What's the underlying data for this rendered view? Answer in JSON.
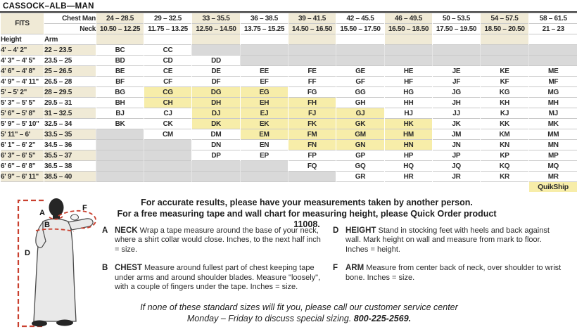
{
  "title": "CASSOCK–ALB—MAN",
  "size_chart": {
    "fits_label": "FITS",
    "chest_label": "Chest Man",
    "neck_label": "Neck",
    "height_label": "Height",
    "arm_label": "Arm",
    "quikship_label": "QuikShip",
    "columns": [
      {
        "chest": "24 – 28.5",
        "neck": "10.50 – 12.25"
      },
      {
        "chest": "29 – 32.5",
        "neck": "11.75 – 13.25"
      },
      {
        "chest": "33 – 35.5",
        "neck": "12.50 – 14.50"
      },
      {
        "chest": "36 – 38.5",
        "neck": "13.75 – 15.25"
      },
      {
        "chest": "39 – 41.5",
        "neck": "14.50 – 16.50"
      },
      {
        "chest": "42 – 45.5",
        "neck": "15.50 – 17.50"
      },
      {
        "chest": "46 – 49.5",
        "neck": "16.50 – 18.50"
      },
      {
        "chest": "50 – 53.5",
        "neck": "17.50 – 19.50"
      },
      {
        "chest": "54 – 57.5",
        "neck": "18.50 – 20.50"
      },
      {
        "chest": "58 – 61.5",
        "neck": "21 – 23"
      }
    ],
    "rows": [
      {
        "height": "4' – 4' 2\"",
        "arm": "22 – 23.5",
        "codes": [
          "BC",
          "CC",
          null,
          null,
          null,
          null,
          null,
          null,
          null,
          null
        ]
      },
      {
        "height": "4' 3\" – 4' 5\"",
        "arm": "23.5 – 25",
        "codes": [
          "BD",
          "CD",
          "DD",
          null,
          null,
          null,
          null,
          null,
          null,
          null
        ]
      },
      {
        "height": "4' 6\" – 4' 8\"",
        "arm": "25 – 26.5",
        "codes": [
          "BE",
          "CE",
          "DE",
          "EE",
          "FE",
          "GE",
          "HE",
          "JE",
          "KE",
          "ME"
        ]
      },
      {
        "height": "4' 9\" – 4' 11\"",
        "arm": "26.5 – 28",
        "codes": [
          "BF",
          "CF",
          "DF",
          "EF",
          "FF",
          "GF",
          "HF",
          "JF",
          "KF",
          "MF"
        ]
      },
      {
        "height": "5' – 5' 2\"",
        "arm": "28 – 29.5",
        "codes": [
          "BG",
          "CG",
          "DG",
          "EG",
          "FG",
          "GG",
          "HG",
          "JG",
          "KG",
          "MG"
        ]
      },
      {
        "height": "5' 3\" – 5' 5\"",
        "arm": "29.5 – 31",
        "codes": [
          "BH",
          "CH",
          "DH",
          "EH",
          "FH",
          "GH",
          "HH",
          "JH",
          "KH",
          "MH"
        ]
      },
      {
        "height": "5' 6\" – 5' 8\"",
        "arm": "31 – 32.5",
        "codes": [
          "BJ",
          "CJ",
          "DJ",
          "EJ",
          "FJ",
          "GJ",
          "HJ",
          "JJ",
          "KJ",
          "MJ"
        ]
      },
      {
        "height": "5' 9\" – 5' 10\"",
        "arm": "32.5 – 34",
        "codes": [
          "BK",
          "CK",
          "DK",
          "EK",
          "FK",
          "GK",
          "HK",
          "JK",
          "KK",
          "MK"
        ]
      },
      {
        "height": "5' 11\" – 6'",
        "arm": "33.5 – 35",
        "codes": [
          null,
          "CM",
          "DM",
          "EM",
          "FM",
          "GM",
          "HM",
          "JM",
          "KM",
          "MM"
        ]
      },
      {
        "height": "6' 1\" – 6' 2\"",
        "arm": "34.5 – 36",
        "codes": [
          null,
          null,
          "DN",
          "EN",
          "FN",
          "GN",
          "HN",
          "JN",
          "KN",
          "MN"
        ]
      },
      {
        "height": "6' 3\" – 6' 5\"",
        "arm": "35.5 – 37",
        "codes": [
          null,
          null,
          "DP",
          "EP",
          "FP",
          "GP",
          "HP",
          "JP",
          "KP",
          "MP"
        ]
      },
      {
        "height": "6' 6\" – 6' 8\"",
        "arm": "36.5 – 38",
        "codes": [
          null,
          null,
          null,
          null,
          "FQ",
          "GQ",
          "HQ",
          "JQ",
          "KQ",
          "MQ"
        ]
      },
      {
        "height": "6' 9\" – 6' 11\"",
        "arm": "38.5 – 40",
        "codes": [
          null,
          null,
          null,
          null,
          null,
          "GR",
          "HR",
          "JR",
          "KR",
          "MR"
        ]
      }
    ],
    "quikship_codes": [
      "CG",
      "DG",
      "EG",
      "CH",
      "DH",
      "EH",
      "FH",
      "DJ",
      "EJ",
      "FJ",
      "GJ",
      "DK",
      "EK",
      "FK",
      "GK",
      "HK",
      "EM",
      "FM",
      "GM",
      "HM",
      "FN",
      "GN",
      "HN"
    ]
  },
  "instructions": {
    "intro_line1": "For accurate results, please have your measurements taken by another person.",
    "intro_line2": "For a free measuring tape and wall chart for measuring height, please Quick Order product 11008.",
    "sections": [
      {
        "letter": "A",
        "term": "NECK",
        "column": "left",
        "text": "Wrap a tape measure around the base of your neck, where a shirt collar would close. Inches, to the next half inch = size."
      },
      {
        "letter": "B",
        "term": "CHEST",
        "column": "left",
        "text": "Measure around fullest part of chest keeping tape under arms and around shoulder blades. Measure \"loosely\", with a couple of fingers under the tape. Inches = size."
      },
      {
        "letter": "D",
        "term": "HEIGHT",
        "column": "right",
        "text": "Stand in stocking feet with heels and back against wall. Mark height on wall and measure from mark to floor. Inches = height."
      },
      {
        "letter": "F",
        "term": "ARM",
        "column": "right",
        "text": "Measure from center back of neck, over shoulder to wrist bone. Inches = size."
      }
    ],
    "footer_line1": "If none of these standard sizes will fit you, please call our customer service center",
    "footer_line2": "Monday – Friday to discuss special sizing.",
    "footer_phone": "800-225-2569."
  },
  "figure": {
    "a": "A",
    "b": "B",
    "d": "D",
    "f": "F"
  },
  "colors": {
    "cream": "#f0ead6",
    "quikship_yellow": "#f7eda9",
    "na_gray": "#d9d9d9",
    "accent_red": "#c9402f",
    "rule_dark": "#3c3c3c"
  }
}
